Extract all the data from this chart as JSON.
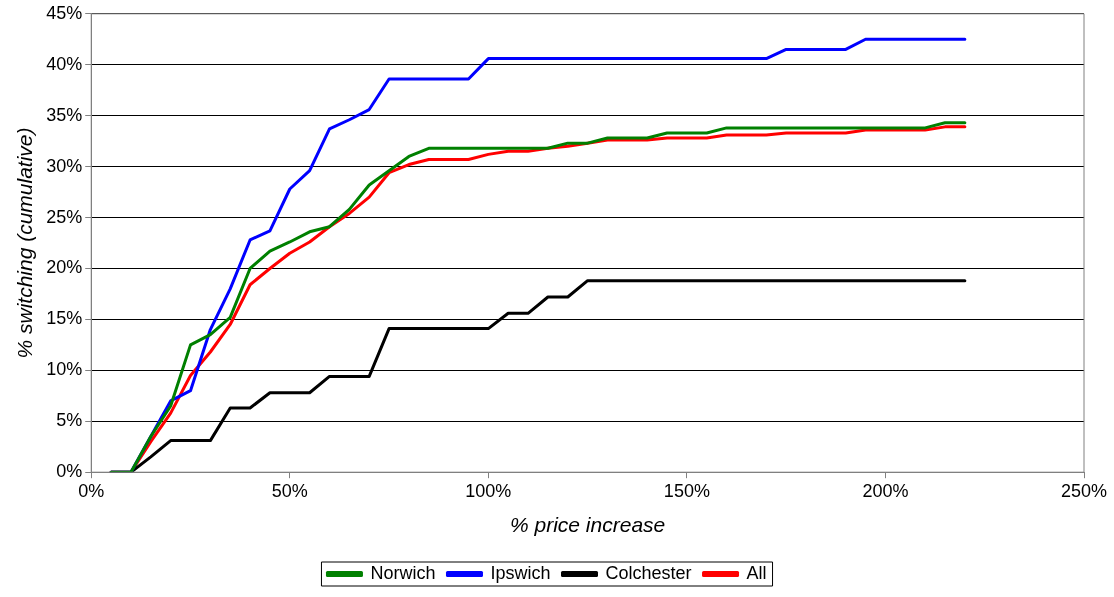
{
  "chart_data": {
    "type": "line",
    "xlabel": "% price increase",
    "ylabel": "% switching (cumulative)",
    "x": [
      5,
      10,
      15,
      20,
      25,
      30,
      35,
      40,
      45,
      50,
      55,
      60,
      65,
      70,
      75,
      80,
      85,
      90,
      95,
      100,
      105,
      110,
      115,
      120,
      125,
      130,
      135,
      140,
      145,
      150,
      155,
      160,
      165,
      170,
      175,
      180,
      185,
      190,
      195,
      200,
      205,
      210,
      215,
      220
    ],
    "series": [
      {
        "name": "Norwich",
        "color": "#008000",
        "values": [
          0,
          0,
          3.5,
          6.5,
          12.5,
          13.5,
          15.2,
          20,
          21.7,
          22.6,
          23.6,
          24.1,
          25.8,
          28.2,
          29.6,
          31,
          31.8,
          31.8,
          31.8,
          31.8,
          31.8,
          31.8,
          31.8,
          32.3,
          32.3,
          32.8,
          32.8,
          32.8,
          33.3,
          33.3,
          33.3,
          33.8,
          33.8,
          33.8,
          33.8,
          33.8,
          33.8,
          33.8,
          33.8,
          33.8,
          33.8,
          33.8,
          34.3,
          34.3
        ]
      },
      {
        "name": "Ipswich",
        "color": "#0000ff",
        "values": [
          0,
          0,
          3.5,
          7,
          8,
          14,
          18,
          22.8,
          23.7,
          27.8,
          29.6,
          33.7,
          34.6,
          35.6,
          38.6,
          38.6,
          38.6,
          38.6,
          38.6,
          40.6,
          40.6,
          40.6,
          40.6,
          40.6,
          40.6,
          40.6,
          40.6,
          40.6,
          40.6,
          40.6,
          40.6,
          40.6,
          40.6,
          40.6,
          41.5,
          41.5,
          41.5,
          41.5,
          42.5,
          42.5,
          42.5,
          42.5,
          42.5,
          42.5
        ]
      },
      {
        "name": "Colchester",
        "color": "#000000",
        "values": [
          0,
          0,
          1.5,
          3.1,
          3.1,
          3.1,
          6.3,
          6.3,
          7.8,
          7.8,
          7.8,
          9.4,
          9.4,
          9.4,
          14.1,
          14.1,
          14.1,
          14.1,
          14.1,
          14.1,
          15.6,
          15.6,
          17.2,
          17.2,
          18.8,
          18.8,
          18.8,
          18.8,
          18.8,
          18.8,
          18.8,
          18.8,
          18.8,
          18.8,
          18.8,
          18.8,
          18.8,
          18.8,
          18.8,
          18.8,
          18.8,
          18.8,
          18.8,
          18.8
        ]
      },
      {
        "name": "All",
        "color": "#ff0000",
        "values": [
          0,
          0,
          3,
          5.8,
          9.5,
          11.8,
          14.5,
          18.4,
          20,
          21.5,
          22.6,
          24.1,
          25.4,
          27,
          29.4,
          30.2,
          30.7,
          30.7,
          30.7,
          31.2,
          31.5,
          31.5,
          31.8,
          32,
          32.3,
          32.6,
          32.6,
          32.6,
          32.8,
          32.8,
          32.8,
          33.1,
          33.1,
          33.1,
          33.3,
          33.3,
          33.3,
          33.3,
          33.6,
          33.6,
          33.6,
          33.6,
          33.9,
          33.9
        ]
      }
    ],
    "xlim": [
      0,
      250
    ],
    "xticks": [
      {
        "value": 0,
        "label": "0%"
      },
      {
        "value": 50,
        "label": "50%"
      },
      {
        "value": 100,
        "label": "100%"
      },
      {
        "value": 150,
        "label": "150%"
      },
      {
        "value": 200,
        "label": "200%"
      },
      {
        "value": 250,
        "label": "250%"
      }
    ],
    "ylim": [
      0,
      45
    ],
    "yticks": [
      {
        "value": 0,
        "label": "0%"
      },
      {
        "value": 5,
        "label": "5%"
      },
      {
        "value": 10,
        "label": "10%"
      },
      {
        "value": 15,
        "label": "15%"
      },
      {
        "value": 20,
        "label": "20%"
      },
      {
        "value": 25,
        "label": "25%"
      },
      {
        "value": 30,
        "label": "30%"
      },
      {
        "value": 35,
        "label": "35%"
      },
      {
        "value": 40,
        "label": "40%"
      },
      {
        "value": 45,
        "label": "45%"
      }
    ],
    "grid": "y",
    "legend": "bottom",
    "marker": "none",
    "line_style": "solid"
  }
}
